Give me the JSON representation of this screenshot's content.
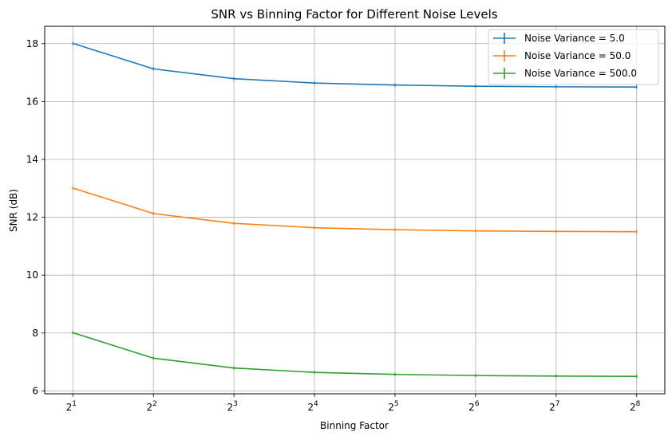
{
  "chart_data": {
    "type": "line",
    "title": "SNR vs Binning Factor for Different Noise Levels",
    "xlabel": "Binning Factor",
    "ylabel": "SNR (dB)",
    "x_scale": "log2",
    "x": [
      2,
      4,
      8,
      16,
      32,
      64,
      128,
      256
    ],
    "x_tick_labels": [
      {
        "base": "2",
        "exp": "1"
      },
      {
        "base": "2",
        "exp": "2"
      },
      {
        "base": "2",
        "exp": "3"
      },
      {
        "base": "2",
        "exp": "4"
      },
      {
        "base": "2",
        "exp": "5"
      },
      {
        "base": "2",
        "exp": "6"
      },
      {
        "base": "2",
        "exp": "7"
      },
      {
        "base": "2",
        "exp": "8"
      }
    ],
    "ylim": [
      5.9,
      18.6
    ],
    "y_ticks": [
      6,
      8,
      10,
      12,
      14,
      16,
      18
    ],
    "grid": true,
    "legend_position": "top-right",
    "series": [
      {
        "name": "Noise Variance = 5.0",
        "color": "#1f77b4",
        "values": [
          18.01,
          17.13,
          16.79,
          16.64,
          16.57,
          16.53,
          16.51,
          16.5
        ]
      },
      {
        "name": "Noise Variance = 50.0",
        "color": "#ff7f0e",
        "values": [
          13.01,
          12.13,
          11.79,
          11.64,
          11.57,
          11.53,
          11.51,
          11.5
        ]
      },
      {
        "name": "Noise Variance = 500.0",
        "color": "#2ca02c",
        "values": [
          8.01,
          7.13,
          6.79,
          6.64,
          6.57,
          6.53,
          6.51,
          6.5
        ]
      }
    ]
  }
}
